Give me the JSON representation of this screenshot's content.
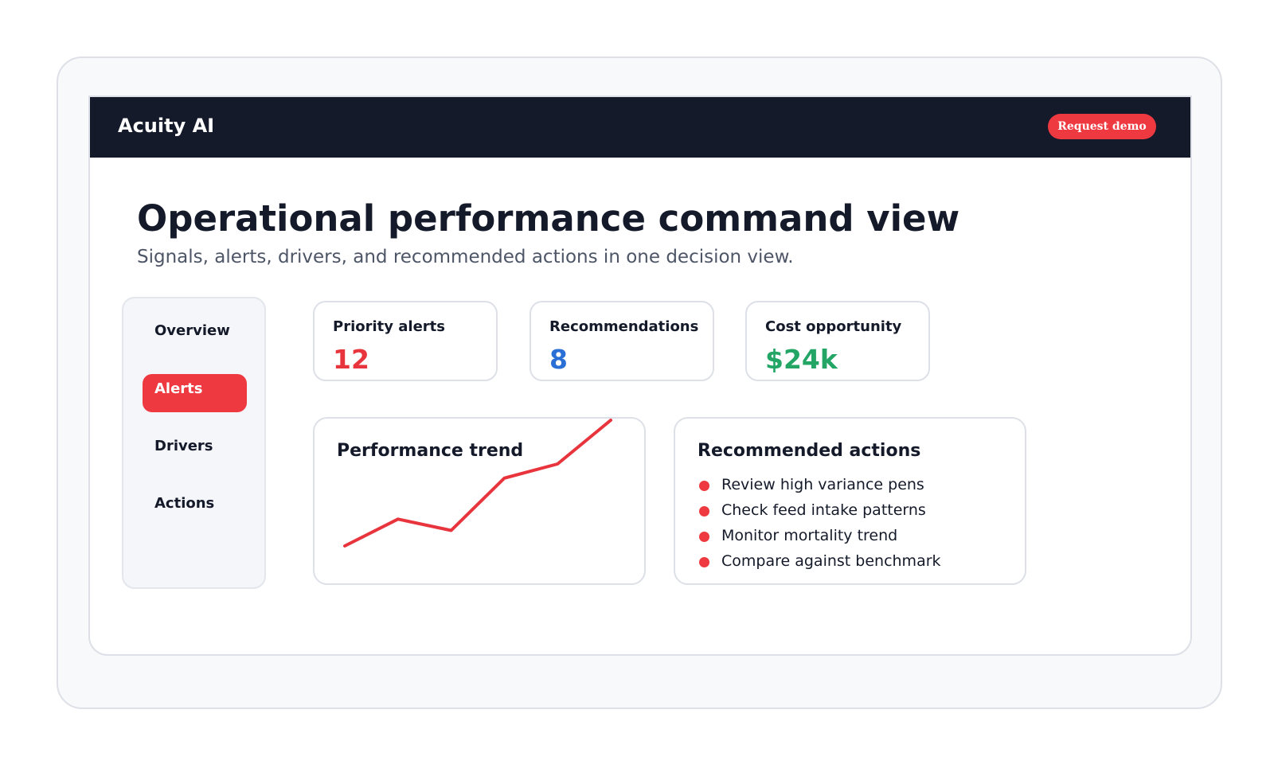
{
  "header": {
    "brand": "Acuity AI",
    "cta_label": "Request demo"
  },
  "page": {
    "title": "Operational performance command view",
    "subtitle": "Signals, alerts, drivers, and recommended actions in one decision view."
  },
  "sidebar": {
    "items": [
      {
        "label": "Overview",
        "active": false
      },
      {
        "label": "Alerts",
        "active": true
      },
      {
        "label": "Drivers",
        "active": false
      },
      {
        "label": "Actions",
        "active": false
      }
    ]
  },
  "kpis": [
    {
      "label": "Priority alerts",
      "value": "12",
      "color": "#e8353d"
    },
    {
      "label": "Recommendations",
      "value": "8",
      "color": "#2a6fd6"
    },
    {
      "label": "Cost opportunity",
      "value": "$24k",
      "color": "#23a565"
    }
  ],
  "trend": {
    "title": "Performance trend",
    "color": "#e8353d",
    "values": [
      0,
      19,
      11,
      48,
      58,
      89
    ]
  },
  "actions": {
    "title": "Recommended actions",
    "items": [
      "Review high variance pens",
      "Check feed intake patterns",
      "Monitor mortality trend",
      "Compare against benchmark"
    ],
    "bullet_color": "#ef3941"
  }
}
